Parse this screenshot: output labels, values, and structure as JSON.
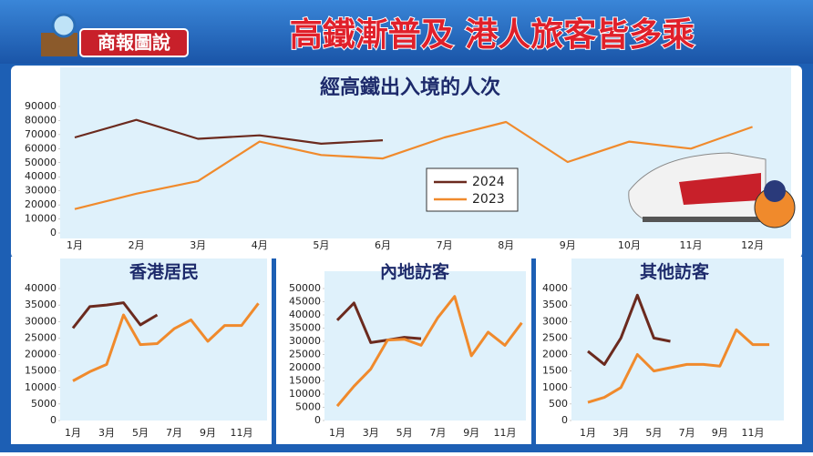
{
  "header": {
    "logo": "商報圖說",
    "title": "高鐵漸普及 港人旅客皆多乘"
  },
  "chart_data": [
    {
      "type": "line",
      "title": "經高鐵出入境的人次",
      "legend": "center",
      "categories": [
        "1月",
        "2月",
        "3月",
        "4月",
        "5月",
        "6月",
        "7月",
        "8月",
        "9月",
        "10月",
        "11月",
        "12月"
      ],
      "series": [
        {
          "name": "2024",
          "color": "#6b2a1e",
          "values": [
            68000,
            80500,
            67000,
            69500,
            63500,
            66000,
            null,
            null,
            null,
            null,
            null,
            null
          ]
        },
        {
          "name": "2023",
          "color": "#f08a2c",
          "values": [
            17000,
            28000,
            37000,
            65000,
            55500,
            53000,
            68000,
            79000,
            50500,
            65000,
            60000,
            75500
          ]
        }
      ],
      "ylim": [
        0,
        90000
      ],
      "yticks": [
        0,
        10000,
        20000,
        30000,
        40000,
        50000,
        60000,
        70000,
        80000,
        90000
      ]
    },
    {
      "type": "line",
      "title": "香港居民",
      "categories": [
        "1月",
        null,
        "3月",
        null,
        "5月",
        null,
        "7月",
        null,
        "9月",
        null,
        "11月",
        null
      ],
      "series": [
        {
          "color": "#6b2a1e",
          "values": [
            28000,
            34500,
            35000,
            35700,
            29000,
            32000,
            null,
            null,
            null,
            null,
            null,
            null
          ]
        },
        {
          "color": "#f08a2c",
          "values": [
            12000,
            14800,
            17000,
            32000,
            23000,
            23300,
            27800,
            30500,
            24000,
            28800,
            28800,
            35500
          ]
        }
      ],
      "ylim": [
        0,
        40000
      ],
      "yticks": [
        0,
        5000,
        10000,
        15000,
        20000,
        25000,
        30000,
        35000,
        40000
      ]
    },
    {
      "type": "line",
      "title": "內地訪客",
      "categories": [
        "1月",
        null,
        "3月",
        null,
        "5月",
        null,
        "7月",
        null,
        "9月",
        null,
        "11月",
        null
      ],
      "series": [
        {
          "color": "#6b2a1e",
          "values": [
            38000,
            44500,
            29500,
            30500,
            31500,
            31000,
            null,
            null,
            null,
            null,
            null,
            null
          ]
        },
        {
          "color": "#f08a2c",
          "values": [
            5500,
            13000,
            19500,
            30500,
            30800,
            28500,
            39000,
            47000,
            24500,
            33500,
            28500,
            37000
          ]
        }
      ],
      "ylim": [
        0,
        50000
      ],
      "yticks": [
        0,
        5000,
        10000,
        15000,
        20000,
        25000,
        30000,
        35000,
        40000,
        45000,
        50000
      ]
    },
    {
      "type": "line",
      "title": "其他訪客",
      "categories": [
        "1月",
        null,
        "3月",
        null,
        "5月",
        null,
        "7月",
        null,
        "9月",
        null,
        "11月",
        null
      ],
      "series": [
        {
          "color": "#6b2a1e",
          "values": [
            2100,
            1700,
            2500,
            3800,
            2500,
            2400,
            null,
            null,
            null,
            null,
            null,
            null
          ]
        },
        {
          "color": "#f08a2c",
          "values": [
            550,
            700,
            1000,
            2000,
            1500,
            1600,
            1700,
            1700,
            1650,
            2750,
            2300,
            2300
          ]
        }
      ],
      "ylim": [
        0,
        4000
      ],
      "yticks": [
        0,
        500,
        1000,
        1500,
        2000,
        2500,
        3000,
        3500,
        4000
      ]
    }
  ]
}
